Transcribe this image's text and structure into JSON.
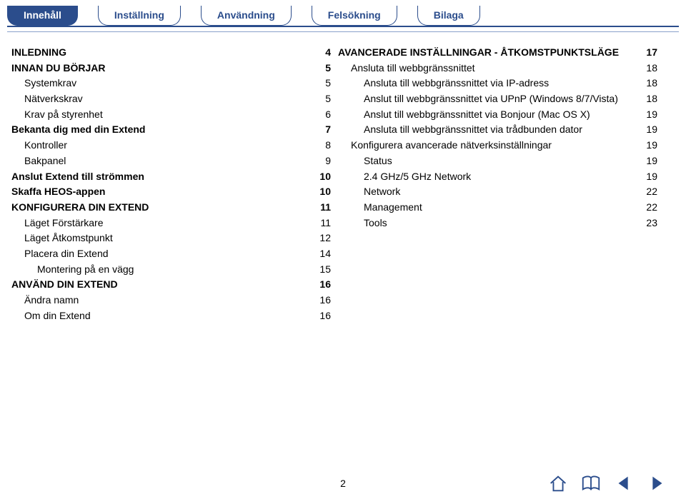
{
  "colors": {
    "brand": "#2b4d8c",
    "text": "#000000",
    "bg": "#ffffff"
  },
  "tabs": [
    {
      "label": "Innehåll",
      "active": true
    },
    {
      "label": "Inställning",
      "active": false
    },
    {
      "label": "Användning",
      "active": false
    },
    {
      "label": "Felsökning",
      "active": false
    },
    {
      "label": "Bilaga",
      "active": false
    }
  ],
  "toc_left": [
    {
      "label": "INLEDNING",
      "page": "4",
      "level": 0
    },
    {
      "label": "INNAN DU BÖRJAR",
      "page": "5",
      "level": 0
    },
    {
      "label": "Systemkrav",
      "page": "5",
      "level": 1
    },
    {
      "label": "Nätverkskrav",
      "page": "5",
      "level": 1
    },
    {
      "label": "Krav på styrenhet",
      "page": "6",
      "level": 1
    },
    {
      "label": "Bekanta dig med din Extend",
      "page": "7",
      "level": 0
    },
    {
      "label": "Kontroller",
      "page": "8",
      "level": 1
    },
    {
      "label": "Bakpanel",
      "page": "9",
      "level": 1
    },
    {
      "label": "Anslut Extend till strömmen",
      "page": "10",
      "level": 0
    },
    {
      "label": "Skaffa HEOS-appen",
      "page": "10",
      "level": 0
    },
    {
      "label": "KONFIGURERA DIN EXTEND",
      "page": "11",
      "level": 0
    },
    {
      "label": "Läget Förstärkare",
      "page": "11",
      "level": 1
    },
    {
      "label": "Läget Åtkomstpunkt",
      "page": "12",
      "level": 1
    },
    {
      "label": "Placera din Extend",
      "page": "14",
      "level": 1
    },
    {
      "label": "Montering på en vägg",
      "page": "15",
      "level": 2
    },
    {
      "label": "ANVÄND DIN EXTEND",
      "page": "16",
      "level": 0
    },
    {
      "label": "Ändra namn",
      "page": "16",
      "level": 1
    },
    {
      "label": "Om din Extend",
      "page": "16",
      "level": 1
    }
  ],
  "toc_right": [
    {
      "label": "AVANCERADE INSTÄLLNINGAR - ÅTKOMSTPUNKTSLÄGE",
      "page": "17",
      "level": 0
    },
    {
      "label": "Ansluta till webbgränssnittet",
      "page": "18",
      "level": 1
    },
    {
      "label": "Ansluta till webbgränssnittet via IP-adress",
      "page": "18",
      "level": 2
    },
    {
      "label": "Anslut till webbgränssnittet via UPnP (Windows 8/7/Vista)",
      "page": "18",
      "level": 2
    },
    {
      "label": "Anslut till webbgränssnittet via Bonjour (Mac OS X)",
      "page": "19",
      "level": 2
    },
    {
      "label": "Ansluta till webbgränssnittet via trådbunden dator",
      "page": "19",
      "level": 2
    },
    {
      "label": "Konfigurera avancerade nätverksinställningar",
      "page": "19",
      "level": 1
    },
    {
      "label": "Status",
      "page": "19",
      "level": 2
    },
    {
      "label": "2.4 GHz/5 GHz Network",
      "page": "19",
      "level": 2
    },
    {
      "label": "Network",
      "page": "22",
      "level": 2
    },
    {
      "label": "Management",
      "page": "22",
      "level": 2
    },
    {
      "label": "Tools",
      "page": "23",
      "level": 2
    }
  ],
  "footer": {
    "page_number": "2"
  },
  "icons": {
    "home": "home-icon",
    "book": "book-icon",
    "prev": "prev-icon",
    "next": "next-icon"
  }
}
